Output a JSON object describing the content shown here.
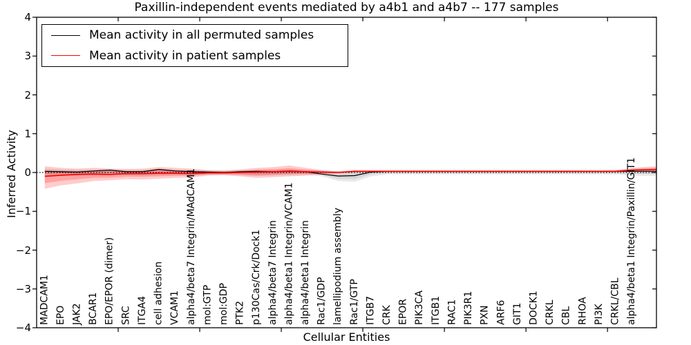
{
  "title": "Paxillin-independent events mediated by a4b1 and a4b7 -- 177 samples",
  "axes": {
    "xlabel": "Cellular Entities",
    "ylabel": "Inferred Activity",
    "ytick_labels": [
      "4",
      "3",
      "2",
      "1",
      "0",
      "−1",
      "−2",
      "−3",
      "−4"
    ]
  },
  "legend": {
    "entries": [
      {
        "label": "Mean activity in all permuted samples",
        "color": "#000000"
      },
      {
        "label": "Mean activity in patient samples",
        "color": "#ff0000"
      }
    ]
  },
  "colors": {
    "permuted_line": "#000000",
    "patient_line": "#ff0000",
    "patient_band": "#ff0000",
    "permuted_band": "#555555",
    "zero_line": "#000000",
    "frame": "#000000"
  },
  "chart_data": {
    "type": "line",
    "title": "Paxillin-independent events mediated by a4b1 and a4b7 -- 177 samples",
    "xlabel": "Cellular Entities",
    "ylabel": "Inferred Activity",
    "ylim": [
      -4,
      4
    ],
    "yticks": [
      4,
      3,
      2,
      1,
      0,
      -1,
      -2,
      -3,
      -4
    ],
    "xlim_units": 38,
    "xtick_positions": [
      5,
      10,
      15,
      20,
      25,
      30,
      35
    ],
    "grid": false,
    "legend_position": "upper left",
    "zero_reference_line": 0,
    "categories": [
      "MADCAM1",
      "EPO",
      "JAK2",
      "BCAR1",
      "EPO/EPOR (dimer)",
      "SRC",
      "ITGA4",
      "cell adhesion",
      "VCAM1",
      "alpha4/beta7 Integrin/MAdCAM1",
      "mol:GTP",
      "mol:GDP",
      "PTK2",
      "p130Cas/Crk/Dock1",
      "alpha4/beta7 Integrin",
      "alpha4/beta1 Integrin/VCAM1",
      "alpha4/beta1 Integrin",
      "Rac1/GDP",
      "lamellipodium assembly",
      "Rac1/GTP",
      "ITGB7",
      "CRK",
      "EPOR",
      "PIK3CA",
      "ITGB1",
      "RAC1",
      "PIK3R1",
      "PXN",
      "ARF6",
      "GIT1",
      "DOCK1",
      "CRKL",
      "CBL",
      "RHOA",
      "PI3K",
      "CRKL/CBL",
      "alpha4/beta1 Integrin/Paxillin/GIT1"
    ],
    "series": [
      {
        "name": "Mean activity in all permuted samples",
        "color": "#000000",
        "values": [
          0.03,
          0.02,
          0.01,
          0.04,
          0.06,
          0.02,
          0.02,
          0.08,
          0.04,
          0.02,
          0.01,
          0.0,
          0.02,
          0.03,
          0.02,
          0.04,
          0.02,
          -0.04,
          -0.09,
          -0.08,
          0.01,
          0.03,
          0.03,
          0.03,
          0.03,
          0.03,
          0.03,
          0.03,
          0.03,
          0.03,
          0.03,
          0.03,
          0.03,
          0.03,
          0.03,
          0.03,
          0.03
        ]
      },
      {
        "name": "Mean activity in patient samples",
        "color": "#ff0000",
        "values": [
          -0.1,
          -0.07,
          -0.05,
          -0.04,
          -0.05,
          -0.03,
          -0.03,
          -0.02,
          -0.02,
          -0.03,
          -0.01,
          -0.01,
          0.0,
          0.01,
          0.02,
          0.03,
          0.02,
          0.01,
          0.0,
          0.03,
          0.03,
          0.03,
          0.03,
          0.03,
          0.03,
          0.03,
          0.03,
          0.03,
          0.03,
          0.03,
          0.03,
          0.03,
          0.03,
          0.03,
          0.03,
          0.03,
          0.06
        ]
      }
    ],
    "bands": [
      {
        "name": "patient samples spread",
        "color": "#ff0000",
        "upper": [
          0.16,
          0.12,
          0.1,
          0.12,
          0.1,
          0.09,
          0.1,
          0.14,
          0.12,
          0.1,
          0.06,
          0.05,
          0.08,
          0.12,
          0.14,
          0.18,
          0.12,
          0.06,
          0.03,
          0.06,
          0.06,
          0.05,
          0.05,
          0.05,
          0.05,
          0.05,
          0.05,
          0.05,
          0.05,
          0.05,
          0.05,
          0.05,
          0.05,
          0.05,
          0.05,
          0.06,
          0.12
        ],
        "lower": [
          -0.42,
          -0.33,
          -0.28,
          -0.22,
          -0.2,
          -0.17,
          -0.18,
          -0.16,
          -0.14,
          -0.13,
          -0.08,
          -0.07,
          -0.1,
          -0.14,
          -0.12,
          -0.1,
          -0.08,
          -0.04,
          -0.02,
          0.0,
          0.01,
          0.01,
          0.01,
          0.01,
          0.01,
          0.01,
          0.01,
          0.01,
          0.01,
          0.01,
          0.01,
          0.01,
          0.01,
          0.01,
          0.01,
          0.01,
          0.02
        ]
      },
      {
        "name": "permuted samples spread",
        "color": "#555555",
        "upper": [
          0.1,
          0.08,
          0.07,
          0.08,
          0.09,
          0.07,
          0.07,
          0.1,
          0.08,
          0.07,
          0.06,
          0.06,
          0.06,
          0.07,
          0.07,
          0.08,
          0.06,
          0.05,
          0.04,
          0.04,
          0.05,
          0.06,
          0.06,
          0.06,
          0.06,
          0.06,
          0.06,
          0.06,
          0.06,
          0.06,
          0.06,
          0.06,
          0.06,
          0.06,
          0.06,
          0.06,
          0.08
        ],
        "lower": [
          -0.1,
          -0.09,
          -0.08,
          -0.08,
          -0.07,
          -0.07,
          -0.08,
          -0.07,
          -0.07,
          -0.07,
          -0.06,
          -0.06,
          -0.07,
          -0.09,
          -0.08,
          -0.07,
          -0.06,
          -0.1,
          -0.22,
          -0.24,
          -0.1,
          -0.05,
          -0.05,
          -0.05,
          -0.05,
          -0.05,
          -0.05,
          -0.05,
          -0.05,
          -0.05,
          -0.05,
          -0.05,
          -0.05,
          -0.05,
          -0.05,
          -0.05,
          -0.08
        ]
      }
    ],
    "right_edge_values": {
      "permuted_mean": 0.03,
      "patient_mean": 0.08,
      "patient_upper": 0.16,
      "patient_lower": 0.02,
      "permuted_upper": 0.09,
      "permuted_lower": -0.09
    }
  }
}
